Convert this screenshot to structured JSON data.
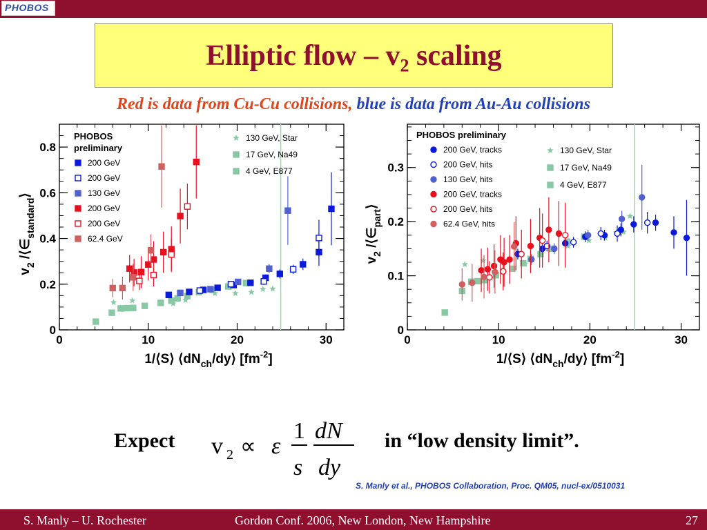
{
  "logo": {
    "text": "PHOBOS"
  },
  "title": {
    "main": "Elliptic flow – v",
    "sub": "2",
    "tail": " scaling"
  },
  "subtitle": {
    "red": "Red is data from Cu-Cu collisions,",
    "blue": " blue is data from Au-Au collisions"
  },
  "colors": {
    "bar": "#8f0f2e",
    "title_bg": "#ffff7a",
    "title_text": "#8f0f2e",
    "cu200": "#e8101e",
    "cu62": "#d06060",
    "au200": "#0a1ad8",
    "au130": "#5060d0",
    "sps": "#88c8a4"
  },
  "chart_data": [
    {
      "type": "scatter",
      "title": "",
      "xlabel": "1/⟨S⟩ ⟨dN",
      "xlabel_sub": "ch",
      "xlabel_tail": "/dy⟩ [fm",
      "xlabel_sup": "-2",
      "xlabel_end": "]",
      "ylabel": "v",
      "ylabel_sub": "2",
      "ylabel_mid": " /⟨∈",
      "ylabel_sub2": "standard",
      "ylabel_end": "⟩",
      "xlim": [
        0,
        32
      ],
      "ylim": [
        0,
        0.9
      ],
      "xticks": [
        "0",
        "10",
        "20",
        "30"
      ],
      "yticks": [
        "0",
        "0.2",
        "0.4",
        "0.6",
        "0.8"
      ],
      "legend_title": [
        "PHOBOS",
        "preliminary"
      ],
      "legend_left": [
        {
          "label": "200 GeV",
          "marker": "square",
          "fill": true,
          "color": "#0a1ad8"
        },
        {
          "label": "200 GeV",
          "marker": "square",
          "fill": false,
          "color": "#0a1ad8"
        },
        {
          "label": "130 GeV",
          "marker": "square",
          "fill": true,
          "color": "#5060d0"
        },
        {
          "label": "200 GeV",
          "marker": "square",
          "fill": true,
          "color": "#e8101e"
        },
        {
          "label": "200 GeV",
          "marker": "square",
          "fill": false,
          "color": "#e8101e"
        },
        {
          "label": "62.4 GeV",
          "marker": "square",
          "fill": true,
          "color": "#d06060"
        }
      ],
      "legend_right": [
        {
          "label": "130 GeV, Star",
          "marker": "star",
          "color": "#88c8a4"
        },
        {
          "label": "17 GeV, Na49",
          "marker": "square",
          "color": "#88c8a4"
        },
        {
          "label": "4 GeV, E877",
          "marker": "square",
          "color": "#88c8a4"
        }
      ],
      "series": [
        {
          "marker": "square",
          "fill": true,
          "color": "#0a1ad8",
          "points": [
            [
              12.3,
              0.153,
              0.01
            ],
            [
              14.6,
              0.166,
              0.01
            ],
            [
              16.2,
              0.175,
              0.01
            ],
            [
              17.8,
              0.184,
              0.01
            ],
            [
              19.6,
              0.196,
              0.012
            ],
            [
              21.5,
              0.206,
              0.012
            ],
            [
              23.2,
              0.228,
              0.015
            ],
            [
              24.8,
              0.245,
              0.02
            ],
            [
              27.4,
              0.287,
              0.025
            ],
            [
              29.2,
              0.34,
              0.06
            ],
            [
              30.6,
              0.53,
              0.16
            ]
          ]
        },
        {
          "marker": "square",
          "fill": false,
          "color": "#0a1ad8",
          "points": [
            [
              15.8,
              0.172,
              0.01
            ],
            [
              19.3,
              0.2,
              0.012
            ],
            [
              23.0,
              0.212,
              0.015
            ],
            [
              26.3,
              0.265,
              0.02
            ],
            [
              29.2,
              0.402,
              0.08
            ]
          ]
        },
        {
          "marker": "square",
          "fill": true,
          "color": "#5060d0",
          "points": [
            [
              13.6,
              0.162,
              0.01
            ],
            [
              17.0,
              0.178,
              0.01
            ],
            [
              20.1,
              0.21,
              0.012
            ],
            [
              23.6,
              0.268,
              0.02
            ],
            [
              25.7,
              0.522,
              0.15
            ]
          ]
        },
        {
          "marker": "square",
          "fill": true,
          "color": "#e8101e",
          "points": [
            [
              7.9,
              0.268,
              0.06
            ],
            [
              8.4,
              0.251,
              0.06
            ],
            [
              9.2,
              0.253,
              0.07
            ],
            [
              10.0,
              0.286,
              0.07
            ],
            [
              10.6,
              0.308,
              0.08
            ],
            [
              11.7,
              0.34,
              0.09
            ],
            [
              12.6,
              0.353,
              0.1
            ],
            [
              13.6,
              0.498,
              0.12
            ],
            [
              15.4,
              0.735,
              0.16
            ]
          ]
        },
        {
          "marker": "square",
          "fill": false,
          "color": "#e8101e",
          "points": [
            [
              9.0,
              0.214,
              0.04
            ],
            [
              10.6,
              0.24,
              0.05
            ],
            [
              12.6,
              0.33,
              0.07
            ],
            [
              14.4,
              0.54,
              0.1
            ]
          ]
        },
        {
          "marker": "square",
          "fill": true,
          "color": "#d06060",
          "points": [
            [
              6.0,
              0.183,
              0.04
            ],
            [
              7.1,
              0.183,
              0.05
            ],
            [
              8.3,
              0.23,
              0.06
            ],
            [
              10.3,
              0.348,
              0.07
            ],
            [
              11.5,
              0.715,
              0.18
            ]
          ]
        }
      ],
      "reference_series": [
        {
          "marker": "star",
          "color": "#88c8a4",
          "points": [
            [
              6.1,
              0.12
            ],
            [
              8.2,
              0.128
            ],
            [
              12.8,
              0.115
            ],
            [
              14.2,
              0.13
            ],
            [
              17.5,
              0.16
            ],
            [
              19.8,
              0.16
            ],
            [
              21.6,
              0.165
            ],
            [
              22.9,
              0.178
            ],
            [
              24.0,
              0.18
            ]
          ]
        },
        {
          "marker": "square",
          "color": "#88c8a4",
          "points": [
            [
              5.9,
              0.075
            ],
            [
              6.9,
              0.094
            ],
            [
              7.6,
              0.095
            ],
            [
              8.3,
              0.096
            ],
            [
              9.6,
              0.105
            ],
            [
              11.4,
              0.118
            ],
            [
              12.6,
              0.128
            ],
            [
              13.3,
              0.138
            ],
            [
              14.4,
              0.148
            ],
            [
              15.7,
              0.165
            ],
            [
              17.2,
              0.175
            ],
            [
              19.0,
              0.19
            ],
            [
              21.0,
              0.205
            ]
          ]
        },
        {
          "marker": "square",
          "color": "#88c8a4",
          "points": [
            [
              4.1,
              0.036
            ]
          ]
        }
      ]
    },
    {
      "type": "scatter",
      "title": "",
      "xlabel": "1/⟨S⟩ ⟨dN",
      "xlabel_sub": "ch",
      "xlabel_tail": "/dy⟩ [fm",
      "xlabel_sup": "-2",
      "xlabel_end": "]",
      "ylabel": "v",
      "ylabel_sub": "2",
      "ylabel_mid": " /⟨∈",
      "ylabel_sub2": "part",
      "ylabel_end": "⟩",
      "xlim": [
        0,
        32
      ],
      "ylim": [
        0,
        0.38
      ],
      "xticks": [
        "0",
        "10",
        "20",
        "30"
      ],
      "yticks": [
        "0",
        "0.1",
        "0.2",
        "0.3"
      ],
      "legend_title": [
        "PHOBOS preliminary"
      ],
      "legend_left": [
        {
          "label": "200 GeV, tracks",
          "marker": "circle",
          "fill": true,
          "color": "#0a1ad8"
        },
        {
          "label": "200 GeV, hits",
          "marker": "circle",
          "fill": false,
          "color": "#0a1ad8"
        },
        {
          "label": "130 GeV, hits",
          "marker": "circle",
          "fill": true,
          "color": "#5060d0"
        },
        {
          "label": "200 GeV, tracks",
          "marker": "circle",
          "fill": true,
          "color": "#e8101e"
        },
        {
          "label": "200 GeV, hits",
          "marker": "circle",
          "fill": false,
          "color": "#e8101e"
        },
        {
          "label": "62.4 GeV, hits",
          "marker": "circle",
          "fill": true,
          "color": "#d06060"
        }
      ],
      "legend_right": [
        {
          "label": "130 GeV, Star",
          "marker": "star",
          "color": "#88c8a4"
        },
        {
          "label": "17 GeV, Na49",
          "marker": "square",
          "color": "#88c8a4"
        },
        {
          "label": "4 GeV, E877",
          "marker": "square",
          "color": "#88c8a4"
        }
      ],
      "series": [
        {
          "marker": "circle",
          "fill": true,
          "color": "#0a1ad8",
          "points": [
            [
              12.1,
              0.14,
              0.01
            ],
            [
              14.8,
              0.15,
              0.01
            ],
            [
              17.3,
              0.16,
              0.01
            ],
            [
              19.5,
              0.172,
              0.01
            ],
            [
              21.6,
              0.175,
              0.01
            ],
            [
              23.4,
              0.185,
              0.012
            ],
            [
              24.8,
              0.195,
              0.015
            ],
            [
              27.2,
              0.198,
              0.015
            ],
            [
              29.2,
              0.18,
              0.03
            ],
            [
              30.6,
              0.17,
              0.07
            ]
          ]
        },
        {
          "marker": "circle",
          "fill": false,
          "color": "#0a1ad8",
          "points": [
            [
              15.3,
              0.155,
              0.01
            ],
            [
              18.2,
              0.162,
              0.01
            ],
            [
              21.2,
              0.178,
              0.012
            ],
            [
              23.0,
              0.178,
              0.015
            ],
            [
              26.3,
              0.198,
              0.02
            ]
          ]
        },
        {
          "marker": "circle",
          "fill": true,
          "color": "#5060d0",
          "points": [
            [
              13.6,
              0.13,
              0.01
            ],
            [
              16.1,
              0.15,
              0.01
            ],
            [
              19.8,
              0.175,
              0.01
            ],
            [
              23.5,
              0.205,
              0.015
            ],
            [
              25.7,
              0.245,
              0.06
            ]
          ]
        },
        {
          "marker": "circle",
          "fill": true,
          "color": "#e8101e",
          "points": [
            [
              8.1,
              0.11,
              0.04
            ],
            [
              8.8,
              0.112,
              0.04
            ],
            [
              9.5,
              0.118,
              0.04
            ],
            [
              10.2,
              0.13,
              0.045
            ],
            [
              10.6,
              0.125,
              0.045
            ],
            [
              11.2,
              0.13,
              0.045
            ],
            [
              11.9,
              0.16,
              0.05
            ],
            [
              13.5,
              0.155,
              0.05
            ],
            [
              14.5,
              0.17,
              0.055
            ],
            [
              15.5,
              0.185,
              0.06
            ],
            [
              16.6,
              0.178,
              0.06
            ]
          ]
        },
        {
          "marker": "circle",
          "fill": false,
          "color": "#e8101e",
          "points": [
            [
              9.0,
              0.097,
              0.03
            ],
            [
              10.5,
              0.108,
              0.035
            ],
            [
              12.5,
              0.14,
              0.045
            ],
            [
              14.8,
              0.165,
              0.05
            ],
            [
              17.3,
              0.175,
              0.06
            ]
          ]
        },
        {
          "marker": "circle",
          "fill": true,
          "color": "#d06060",
          "points": [
            [
              6.0,
              0.084,
              0.03
            ],
            [
              7.1,
              0.087,
              0.035
            ],
            [
              8.4,
              0.098,
              0.04
            ],
            [
              9.6,
              0.107,
              0.04
            ],
            [
              11.7,
              0.154,
              0.045
            ]
          ]
        }
      ],
      "reference_series": [
        {
          "marker": "star",
          "color": "#88c8a4",
          "points": [
            [
              6.3,
              0.121
            ],
            [
              8.3,
              0.128
            ],
            [
              12.9,
              0.122
            ],
            [
              14.6,
              0.138
            ],
            [
              17.6,
              0.155
            ],
            [
              19.9,
              0.165
            ],
            [
              21.7,
              0.17
            ],
            [
              22.9,
              0.18
            ],
            [
              23.7,
              0.181
            ],
            [
              24.4,
              0.21
            ]
          ]
        },
        {
          "marker": "square",
          "color": "#88c8a4",
          "points": [
            [
              6.0,
              0.072
            ],
            [
              7.0,
              0.089
            ],
            [
              7.7,
              0.09
            ],
            [
              8.4,
              0.092
            ],
            [
              9.7,
              0.101
            ],
            [
              11.5,
              0.113
            ],
            [
              12.7,
              0.123
            ],
            [
              13.5,
              0.131
            ],
            [
              14.6,
              0.14
            ],
            [
              15.9,
              0.15
            ],
            [
              17.5,
              0.163
            ],
            [
              19.4,
              0.172
            ]
          ]
        },
        {
          "marker": "square",
          "color": "#88c8a4",
          "points": [
            [
              4.1,
              0.032
            ]
          ]
        }
      ]
    }
  ],
  "formula": {
    "lhs": "v",
    "lhs_sub": "2",
    "prop": "∝",
    "eps": "ε",
    "one": "1",
    "s": "s",
    "dN": "dN",
    "dy": "dy"
  },
  "expect_label": "Expect",
  "limit_label": "in “low density limit”.",
  "reference": "S. Manly et al., PHOBOS Collaboration, Proc. QM05, nucl-ex/0510031",
  "footer": {
    "left": "S. Manly – U. Rochester",
    "center": "Gordon Conf. 2006, New London, New Hampshire",
    "page": "27"
  }
}
